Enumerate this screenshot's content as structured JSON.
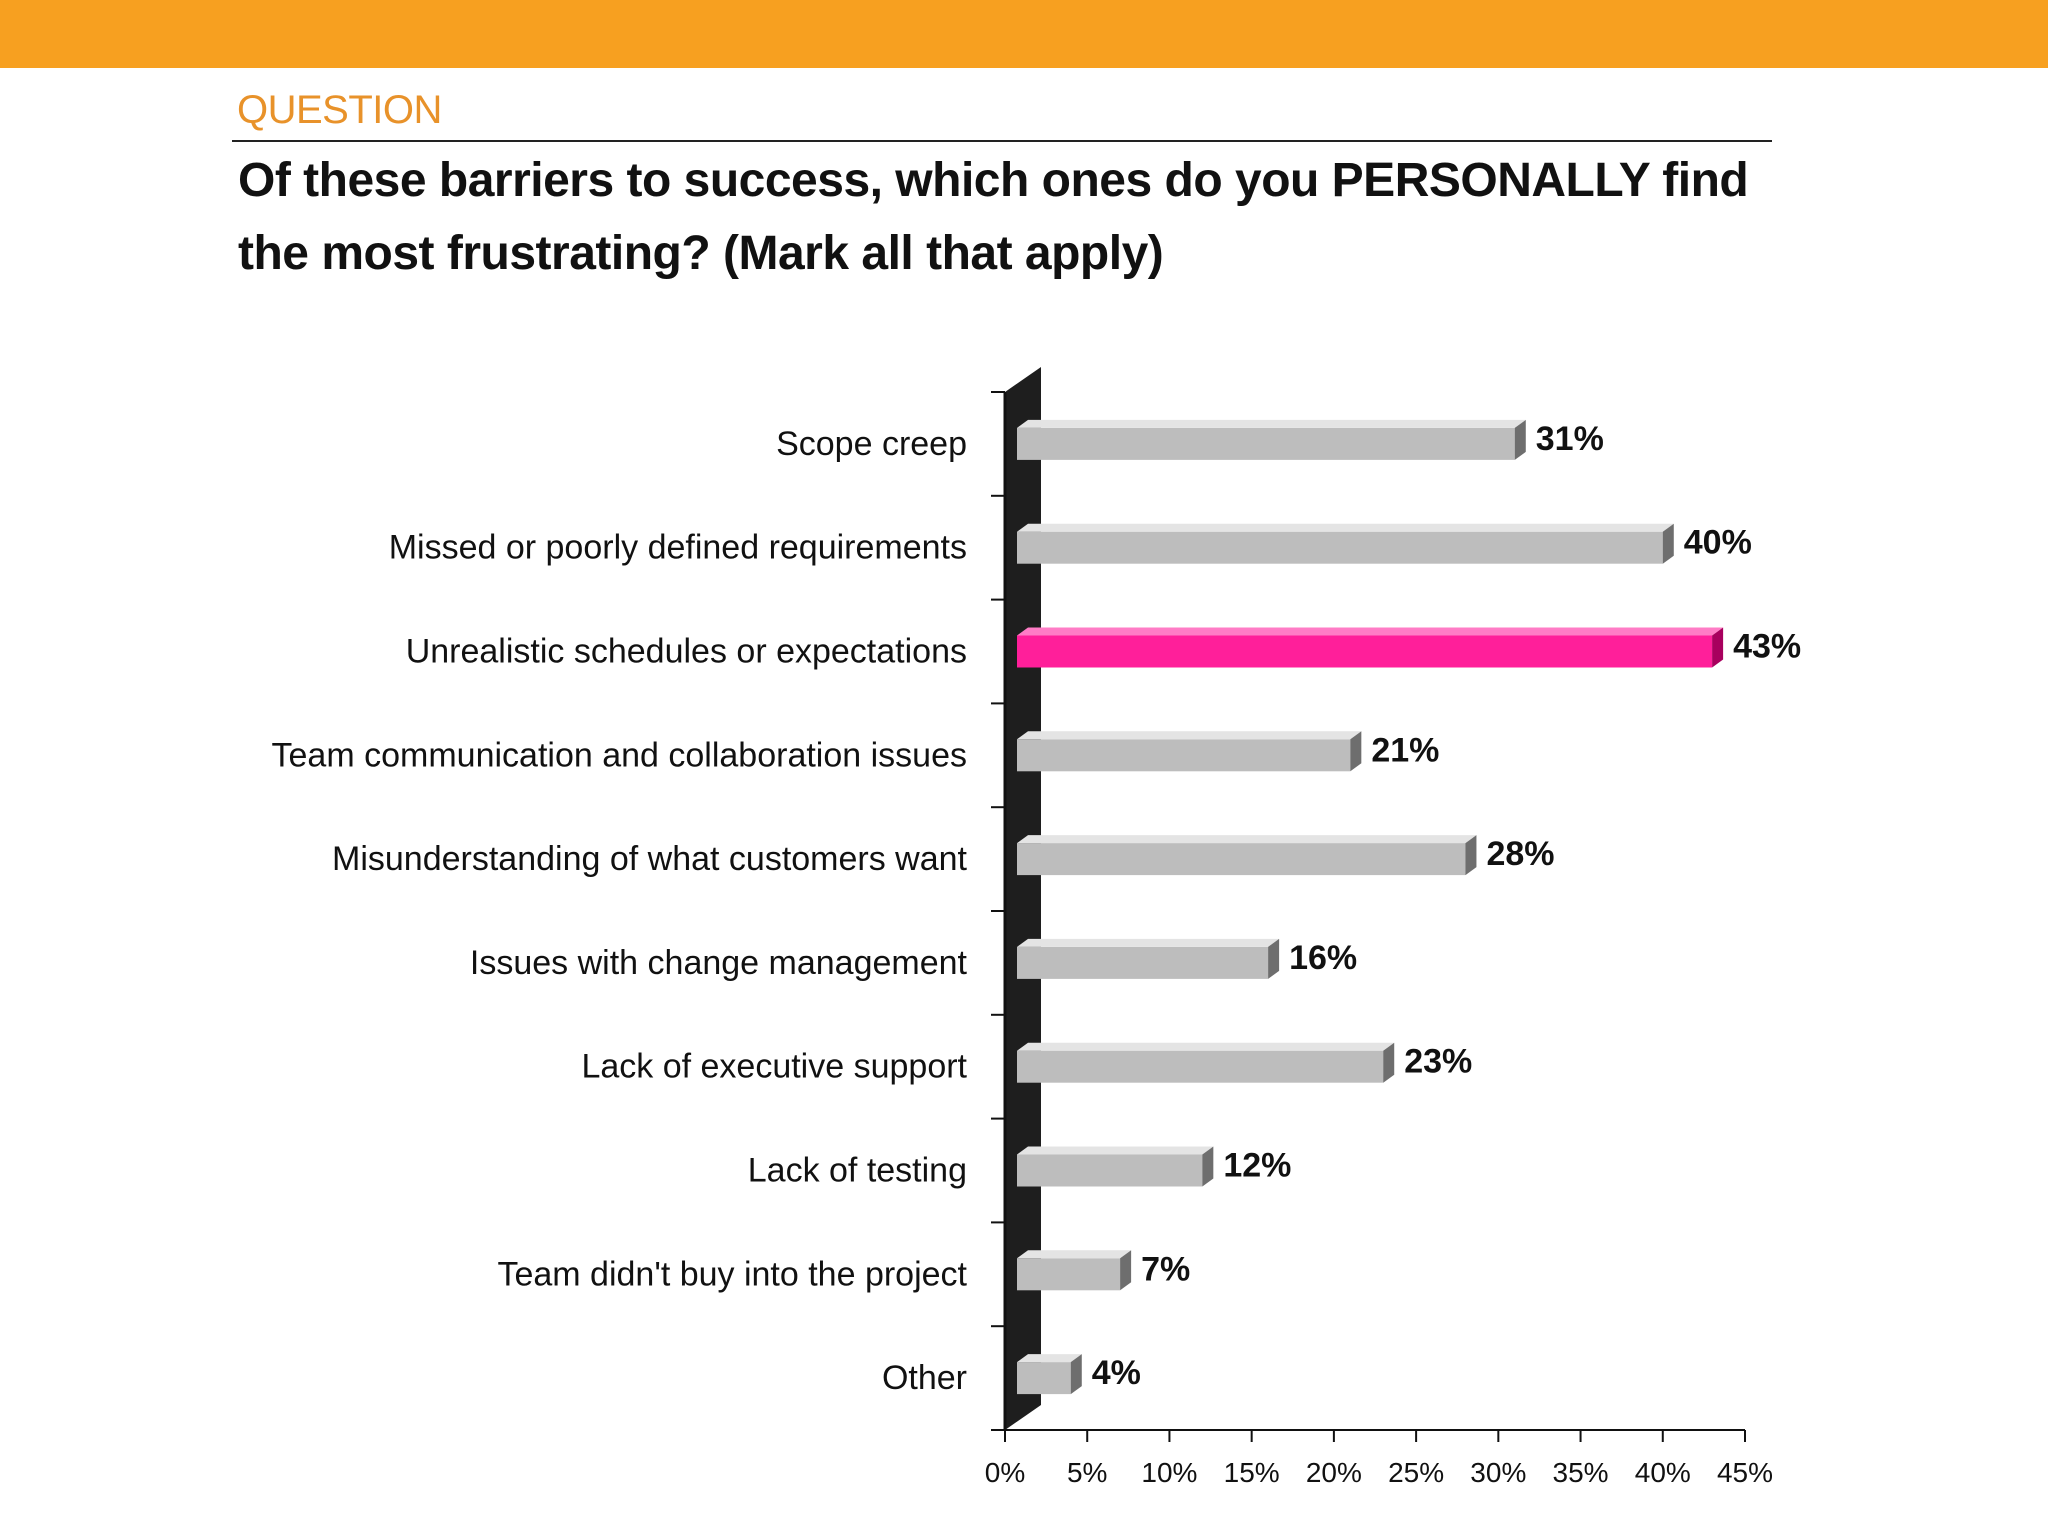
{
  "header": {
    "section_label": "QUESTION",
    "question": "Of these barriers to success, which ones do you PERSONALLY find the most frustrating? (Mark all that apply)"
  },
  "colors": {
    "top_band": "#F7A020",
    "section_label": "#E8922A",
    "bar": "#BDBDBD",
    "bar_top": "#E4E4E4",
    "bar_side": "#6E6E6E",
    "highlight": "#FF1F9A",
    "highlight_top": "#FF7CC6",
    "highlight_side": "#A8005E",
    "wall": "#1E1E1E"
  },
  "chart_data": {
    "type": "bar",
    "orientation": "horizontal",
    "categories": [
      "Scope creep",
      "Missed or poorly defined requirements",
      "Unrealistic schedules or expectations",
      "Team communication and collaboration issues",
      "Misunderstanding of what customers want",
      "Issues with change management",
      "Lack of executive support",
      "Lack of testing",
      "Team didn't buy into the project",
      "Other"
    ],
    "values": [
      31,
      40,
      43,
      21,
      28,
      16,
      23,
      12,
      7,
      4
    ],
    "value_labels": [
      "31%",
      "40%",
      "43%",
      "21%",
      "28%",
      "16%",
      "23%",
      "12%",
      "7%",
      "4%"
    ],
    "highlight_category": "Unrealistic schedules or expectations",
    "xlim": [
      0,
      45
    ],
    "xticks": [
      0,
      5,
      10,
      15,
      20,
      25,
      30,
      35,
      40,
      45
    ],
    "xtick_labels": [
      "0%",
      "5%",
      "10%",
      "15%",
      "20%",
      "25%",
      "30%",
      "35%",
      "40%",
      "45%"
    ],
    "grid": false,
    "legend": "none"
  }
}
